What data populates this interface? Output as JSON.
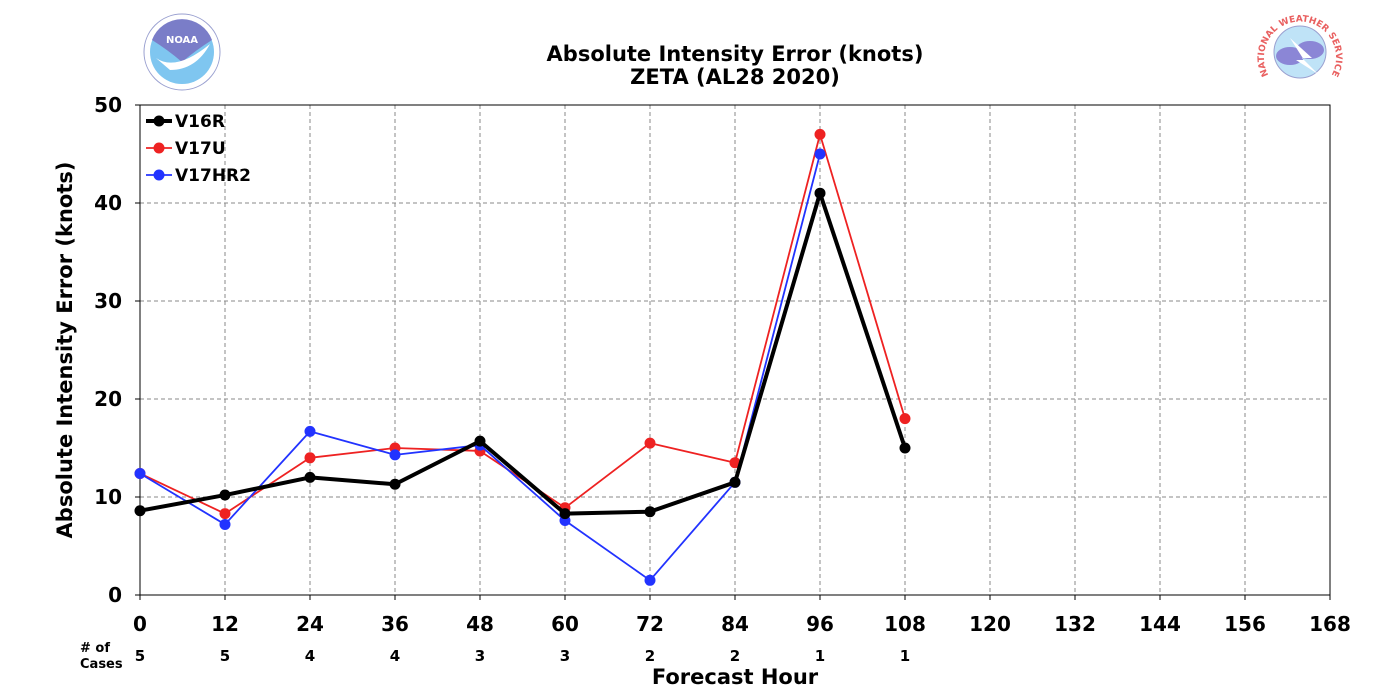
{
  "chart_data": {
    "type": "line",
    "title": "Absolute Intensity Error (knots)",
    "subtitle": "ZETA (AL28 2020)",
    "xlabel": "Forecast Hour",
    "ylabel": "Absolute Intensity Error (knots)",
    "xlim": [
      0,
      168
    ],
    "ylim": [
      0,
      50
    ],
    "x_ticks": [
      0,
      12,
      24,
      36,
      48,
      60,
      72,
      84,
      96,
      108,
      120,
      132,
      144,
      156,
      168
    ],
    "y_ticks": [
      0,
      10,
      20,
      30,
      40,
      50
    ],
    "grid": true,
    "legend_position": "top-left",
    "cases_label": "# of\nCases",
    "cases": [
      {
        "x": 0,
        "n": 5
      },
      {
        "x": 12,
        "n": 5
      },
      {
        "x": 24,
        "n": 4
      },
      {
        "x": 36,
        "n": 4
      },
      {
        "x": 48,
        "n": 3
      },
      {
        "x": 60,
        "n": 3
      },
      {
        "x": 72,
        "n": 2
      },
      {
        "x": 84,
        "n": 2
      },
      {
        "x": 96,
        "n": 1
      },
      {
        "x": 108,
        "n": 1
      }
    ],
    "series": [
      {
        "name": "V16R",
        "color": "#000000",
        "x": [
          0,
          12,
          24,
          36,
          48,
          60,
          72,
          84,
          96,
          108
        ],
        "values": [
          8.6,
          10.2,
          12.0,
          11.3,
          15.7,
          8.3,
          8.5,
          11.5,
          41.0,
          15.0
        ]
      },
      {
        "name": "V17U",
        "color": "#ee2222",
        "x": [
          0,
          12,
          24,
          36,
          48,
          60,
          72,
          84,
          96,
          108
        ],
        "values": [
          12.4,
          8.3,
          14.0,
          15.0,
          14.7,
          8.9,
          15.5,
          13.5,
          47.0,
          18.0
        ]
      },
      {
        "name": "V17HR2",
        "color": "#2233ff",
        "x": [
          0,
          12,
          24,
          36,
          48,
          60,
          72,
          84,
          96
        ],
        "values": [
          12.4,
          7.2,
          16.7,
          14.3,
          15.3,
          7.6,
          1.5,
          11.5,
          45.0
        ]
      }
    ]
  },
  "logos": {
    "left": {
      "icon": "noaa-logo-icon",
      "text": "NOAA"
    },
    "right": {
      "icon": "nws-logo-icon",
      "text": "NATIONAL WEATHER SERVICE"
    }
  }
}
